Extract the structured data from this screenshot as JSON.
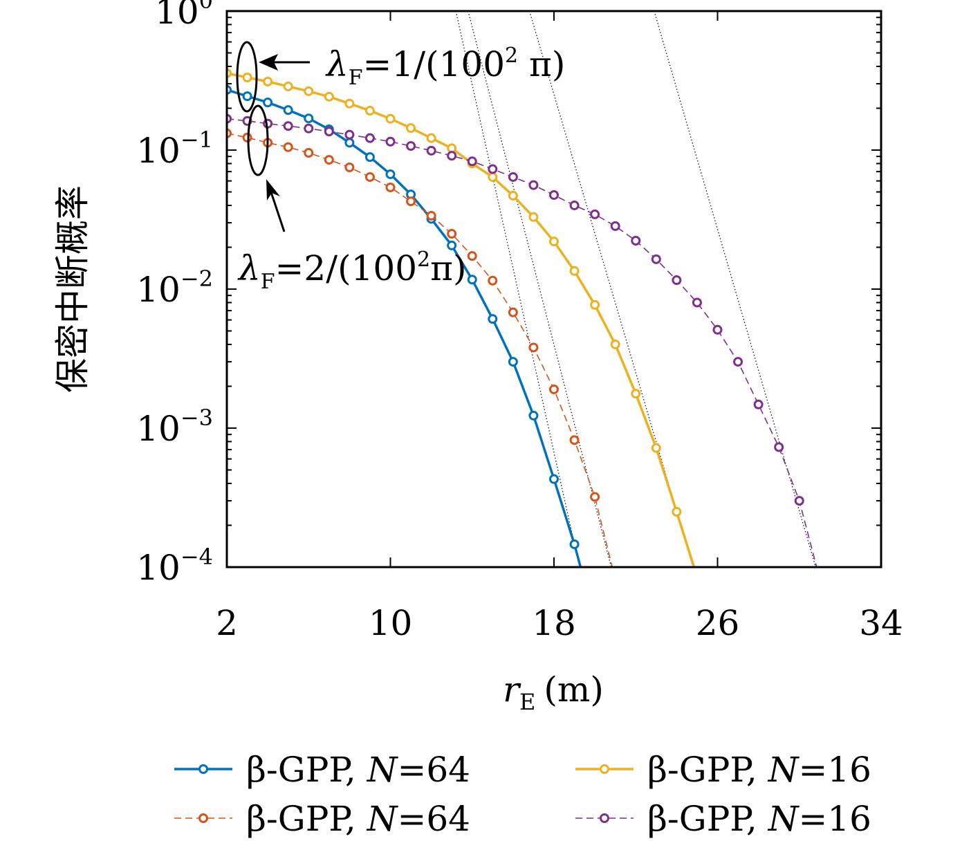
{
  "chart_data": {
    "type": "line",
    "title": "",
    "xlabel": "r_E (m)",
    "xlabel_main": "r",
    "xlabel_sub": "E",
    "xlabel_unit": "(m)",
    "ylabel": "保密中断概率",
    "xlim": [
      2,
      34
    ],
    "ylim": [
      0.0001,
      1
    ],
    "yscale": "log",
    "xticks": [
      2,
      10,
      18,
      26,
      34
    ],
    "xtick_labels": [
      "2",
      "10",
      "18",
      "26",
      "34"
    ],
    "yticks": [
      1,
      0.1,
      0.01,
      0.001,
      0.0001
    ],
    "ytick_labels": [
      {
        "base": "10",
        "exp": "0"
      },
      {
        "base": "10",
        "exp": "−1"
      },
      {
        "base": "10",
        "exp": "−2"
      },
      {
        "base": "10",
        "exp": "−3"
      },
      {
        "base": "10",
        "exp": "−4"
      }
    ],
    "grid": false,
    "legend_placement": "bottom",
    "series": [
      {
        "name": "β-GPP, N=64",
        "label_pre": "β-GPP, ",
        "label_var": "N",
        "label_post": "=64",
        "color": "#0072BD",
        "dash": "solid",
        "x": [
          2,
          3,
          4,
          5,
          6,
          7,
          8,
          9,
          10,
          11,
          12,
          13,
          14,
          15,
          16,
          17,
          18,
          19
        ],
        "y": [
          0.271,
          0.244,
          0.22,
          0.194,
          0.169,
          0.141,
          0.113,
          0.089,
          0.067,
          0.048,
          0.032,
          0.0206,
          0.0117,
          0.0061,
          0.003,
          0.00123,
          0.00043,
          0.000146
        ],
        "line_end": [
          19.3,
          0.0001
        ]
      },
      {
        "name": "β-GPP, N=64",
        "label_pre": "β-GPP, ",
        "label_var": "N",
        "label_post": "=64",
        "color": "#D95319",
        "dash": "dashed",
        "x": [
          2,
          3,
          4,
          5,
          6,
          7,
          8,
          9,
          10,
          11,
          12,
          13,
          14,
          15,
          16,
          17,
          18,
          19,
          20
        ],
        "y": [
          0.132,
          0.123,
          0.113,
          0.105,
          0.0955,
          0.0851,
          0.0751,
          0.064,
          0.0539,
          0.0428,
          0.0337,
          0.025,
          0.0173,
          0.0115,
          0.0068,
          0.0038,
          0.0019,
          0.00082,
          0.00032
        ],
        "line_end": [
          20.85,
          0.0001
        ]
      },
      {
        "name": "β-GPP, N=16",
        "label_pre": "β-GPP, ",
        "label_var": "N",
        "label_post": "=16",
        "color": "#EDB120",
        "dash": "solid",
        "x": [
          2,
          3,
          4,
          5,
          6,
          7,
          8,
          9,
          10,
          11,
          12,
          13,
          14,
          15,
          16,
          17,
          18,
          19,
          20,
          21,
          22,
          23,
          24
        ],
        "y": [
          0.357,
          0.333,
          0.311,
          0.287,
          0.265,
          0.242,
          0.216,
          0.192,
          0.168,
          0.144,
          0.122,
          0.103,
          0.08,
          0.064,
          0.047,
          0.033,
          0.022,
          0.0135,
          0.0077,
          0.004,
          0.00177,
          0.00072,
          0.00025
        ],
        "line_end": [
          24.85,
          0.0001
        ]
      },
      {
        "name": "β-GPP, N=16",
        "label_pre": "β-GPP, ",
        "label_var": "N",
        "label_post": "=16",
        "color": "#7E2F8E",
        "dash": "dashed",
        "x": [
          2,
          3,
          4,
          5,
          6,
          7,
          8,
          9,
          10,
          11,
          12,
          13,
          14,
          15,
          16,
          17,
          18,
          19,
          20,
          21,
          22,
          23,
          24,
          25,
          26,
          27,
          28,
          29,
          30
        ],
        "y": [
          0.168,
          0.162,
          0.155,
          0.149,
          0.143,
          0.136,
          0.129,
          0.122,
          0.115,
          0.107,
          0.099,
          0.091,
          0.083,
          0.073,
          0.064,
          0.056,
          0.0475,
          0.04,
          0.0345,
          0.0284,
          0.0223,
          0.0164,
          0.0116,
          0.008,
          0.0051,
          0.003,
          0.00148,
          0.00073,
          0.0003
        ],
        "line_end": [
          30.85,
          0.0001
        ]
      }
    ],
    "asymptotes": [
      {
        "x_top": 13.2,
        "x_bottom": 19.25
      },
      {
        "x_top": 13.8,
        "x_bottom": 20.8
      },
      {
        "x_top": 16.8,
        "x_bottom": 24.8
      },
      {
        "x_top": 22.9,
        "x_bottom": 30.8
      }
    ],
    "annotations": [
      {
        "text_lambda": "λ",
        "text_sub": "F",
        "text_rest": "=1/(100",
        "text_sup": "2",
        "text_end": " π)"
      },
      {
        "text_lambda": "λ",
        "text_sub": "F",
        "text_rest": "=2/(100",
        "text_sup": "2",
        "text_end": "π)"
      }
    ]
  }
}
